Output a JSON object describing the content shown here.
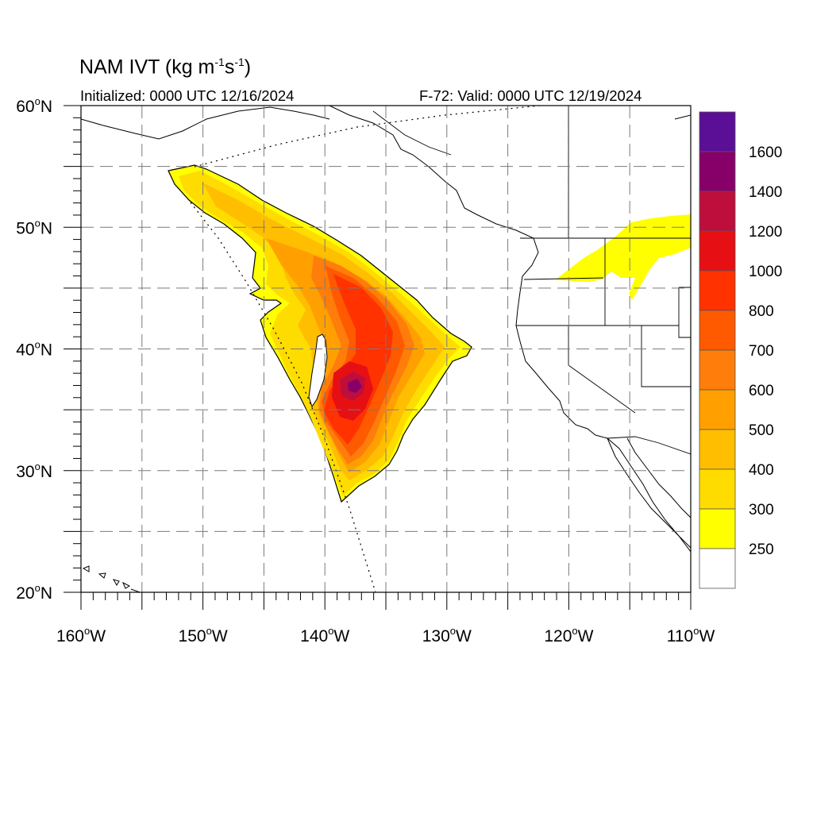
{
  "title": {
    "main": "NAM IVT (kg m",
    "exp1": "-1",
    "mid": "s",
    "exp2": "-1",
    "end": ")"
  },
  "initialized": "Initialized: 0000 UTC 12/16/2024",
  "valid": "F-72: Valid: 0000 UTC 12/19/2024",
  "map_extent": {
    "lon": [
      -160,
      -110
    ],
    "lat": [
      20,
      60
    ]
  },
  "latitude_labels": [
    "60",
    "50",
    "40",
    "30",
    "20"
  ],
  "latitude_suffix": "N",
  "longitude_labels": [
    "160",
    "150",
    "140",
    "130",
    "120",
    "110"
  ],
  "longitude_suffix": "W",
  "colorbar": {
    "labels": [
      "1600",
      "1400",
      "1200",
      "1000",
      "800",
      "700",
      "600",
      "500",
      "400",
      "300",
      "250"
    ],
    "colors": [
      "#5a0f96",
      "#870069",
      "#be0e3c",
      "#e60f14",
      "#ff3200",
      "#ff5a00",
      "#ff7d0a",
      "#ffa000",
      "#ffbe00",
      "#ffdc00",
      "#ffff00",
      "#ffffff"
    ]
  }
}
